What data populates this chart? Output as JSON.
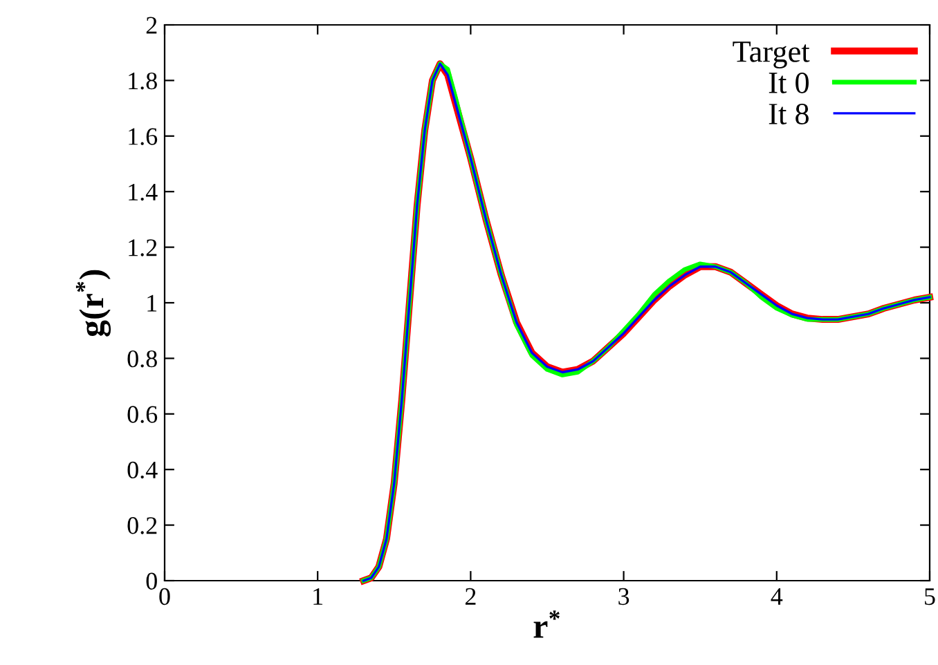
{
  "chart_data": {
    "type": "line",
    "xlabel": "r$^{*}$",
    "ylabel": "g(r$^{*}$)",
    "xlim": [
      0,
      5
    ],
    "ylim": [
      0,
      2
    ],
    "xticks": [
      0,
      1,
      2,
      3,
      4,
      5
    ],
    "yticks": [
      0,
      0.2,
      0.4,
      0.6,
      0.8,
      1,
      1.2,
      1.4,
      1.6,
      1.8,
      2
    ],
    "x": [
      1.3,
      1.35,
      1.4,
      1.45,
      1.5,
      1.55,
      1.6,
      1.65,
      1.7,
      1.75,
      1.8,
      1.85,
      1.9,
      1.95,
      2.0,
      2.1,
      2.2,
      2.3,
      2.4,
      2.5,
      2.6,
      2.7,
      2.8,
      2.9,
      3.0,
      3.1,
      3.2,
      3.3,
      3.4,
      3.5,
      3.6,
      3.7,
      3.8,
      3.9,
      4.0,
      4.1,
      4.2,
      4.3,
      4.4,
      4.5,
      4.6,
      4.7,
      4.8,
      4.9,
      5.0
    ],
    "series": [
      {
        "name": "Target",
        "color": "#ff0000",
        "values": [
          0,
          0.01,
          0.05,
          0.15,
          0.35,
          0.65,
          1.0,
          1.35,
          1.62,
          1.8,
          1.86,
          1.82,
          1.72,
          1.62,
          1.52,
          1.3,
          1.1,
          0.93,
          0.82,
          0.77,
          0.75,
          0.76,
          0.79,
          0.84,
          0.89,
          0.95,
          1.01,
          1.06,
          1.1,
          1.13,
          1.13,
          1.11,
          1.07,
          1.03,
          0.99,
          0.96,
          0.945,
          0.94,
          0.94,
          0.95,
          0.96,
          0.98,
          0.995,
          1.01,
          1.02
        ]
      },
      {
        "name": "It 0",
        "color": "#00ff00",
        "values": [
          0,
          0.01,
          0.05,
          0.15,
          0.35,
          0.65,
          1.0,
          1.35,
          1.62,
          1.8,
          1.86,
          1.84,
          1.74,
          1.63,
          1.52,
          1.3,
          1.1,
          0.92,
          0.81,
          0.76,
          0.74,
          0.75,
          0.79,
          0.84,
          0.9,
          0.96,
          1.03,
          1.08,
          1.12,
          1.14,
          1.13,
          1.11,
          1.07,
          1.02,
          0.98,
          0.955,
          0.94,
          0.94,
          0.94,
          0.95,
          0.96,
          0.98,
          0.995,
          1.01,
          1.02
        ]
      },
      {
        "name": "It 8",
        "color": "#0000ff",
        "values": [
          0,
          0.01,
          0.05,
          0.15,
          0.35,
          0.65,
          1.0,
          1.35,
          1.62,
          1.8,
          1.86,
          1.82,
          1.72,
          1.62,
          1.52,
          1.3,
          1.1,
          0.93,
          0.82,
          0.77,
          0.75,
          0.76,
          0.79,
          0.84,
          0.89,
          0.95,
          1.01,
          1.06,
          1.1,
          1.13,
          1.13,
          1.11,
          1.07,
          1.03,
          0.99,
          0.96,
          0.945,
          0.94,
          0.94,
          0.95,
          0.96,
          0.98,
          0.995,
          1.01,
          1.02
        ]
      }
    ],
    "legend": "top right",
    "grid": false,
    "marker": "none",
    "line_style": "solid"
  }
}
